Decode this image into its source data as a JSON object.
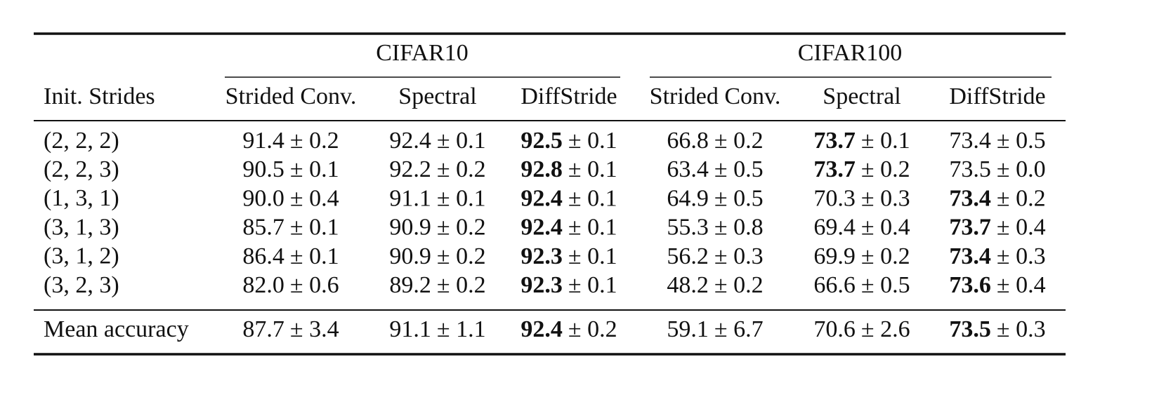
{
  "table": {
    "groups": [
      "CIFAR10",
      "CIFAR100"
    ],
    "columns": [
      "Init. Strides",
      "Strided Conv.",
      "Spectral",
      "DiffStride",
      "Strided Conv.",
      "Spectral",
      "DiffStride"
    ],
    "rows": [
      {
        "label": "(2, 2, 2)",
        "cells": [
          {
            "mean": "91.4",
            "err": "± 0.2",
            "bold": false
          },
          {
            "mean": "92.4",
            "err": "± 0.1",
            "bold": false
          },
          {
            "mean": "92.5",
            "err": "± 0.1",
            "bold": true
          },
          {
            "mean": "66.8",
            "err": "± 0.2",
            "bold": false
          },
          {
            "mean": "73.7",
            "err": "± 0.1",
            "bold": true
          },
          {
            "mean": "73.4",
            "err": "± 0.5",
            "bold": false
          }
        ]
      },
      {
        "label": "(2, 2, 3)",
        "cells": [
          {
            "mean": "90.5",
            "err": "± 0.1",
            "bold": false
          },
          {
            "mean": "92.2",
            "err": "± 0.2",
            "bold": false
          },
          {
            "mean": "92.8",
            "err": "± 0.1",
            "bold": true
          },
          {
            "mean": "63.4",
            "err": "± 0.5",
            "bold": false
          },
          {
            "mean": "73.7",
            "err": "± 0.2",
            "bold": true
          },
          {
            "mean": "73.5",
            "err": "± 0.0",
            "bold": false
          }
        ]
      },
      {
        "label": "(1, 3, 1)",
        "cells": [
          {
            "mean": "90.0",
            "err": "± 0.4",
            "bold": false
          },
          {
            "mean": "91.1",
            "err": "± 0.1",
            "bold": false
          },
          {
            "mean": "92.4",
            "err": "± 0.1",
            "bold": true
          },
          {
            "mean": "64.9",
            "err": "± 0.5",
            "bold": false
          },
          {
            "mean": "70.3",
            "err": "± 0.3",
            "bold": false
          },
          {
            "mean": "73.4",
            "err": "± 0.2",
            "bold": true
          }
        ]
      },
      {
        "label": "(3, 1, 3)",
        "cells": [
          {
            "mean": "85.7",
            "err": "± 0.1",
            "bold": false
          },
          {
            "mean": "90.9",
            "err": "± 0.2",
            "bold": false
          },
          {
            "mean": "92.4",
            "err": "± 0.1",
            "bold": true
          },
          {
            "mean": "55.3",
            "err": "± 0.8",
            "bold": false
          },
          {
            "mean": "69.4",
            "err": "± 0.4",
            "bold": false
          },
          {
            "mean": "73.7",
            "err": "± 0.4",
            "bold": true
          }
        ]
      },
      {
        "label": "(3, 1, 2)",
        "cells": [
          {
            "mean": "86.4",
            "err": "± 0.1",
            "bold": false
          },
          {
            "mean": "90.9",
            "err": "± 0.2",
            "bold": false
          },
          {
            "mean": "92.3",
            "err": "± 0.1",
            "bold": true
          },
          {
            "mean": "56.2",
            "err": "± 0.3",
            "bold": false
          },
          {
            "mean": "69.9",
            "err": "± 0.2",
            "bold": false
          },
          {
            "mean": "73.4",
            "err": "± 0.3",
            "bold": true
          }
        ]
      },
      {
        "label": "(3, 2, 3)",
        "cells": [
          {
            "mean": "82.0",
            "err": "± 0.6",
            "bold": false
          },
          {
            "mean": "89.2",
            "err": "± 0.2",
            "bold": false
          },
          {
            "mean": "92.3",
            "err": "± 0.1",
            "bold": true
          },
          {
            "mean": "48.2",
            "err": "± 0.2",
            "bold": false
          },
          {
            "mean": "66.6",
            "err": "± 0.5",
            "bold": false
          },
          {
            "mean": "73.6",
            "err": "± 0.4",
            "bold": true
          }
        ]
      }
    ],
    "summary": {
      "label": "Mean accuracy",
      "cells": [
        {
          "mean": "87.7",
          "err": "± 3.4",
          "bold": false
        },
        {
          "mean": "91.1",
          "err": "± 1.1",
          "bold": false
        },
        {
          "mean": "92.4",
          "err": "± 0.2",
          "bold": true
        },
        {
          "mean": "59.1",
          "err": "± 6.7",
          "bold": false
        },
        {
          "mean": "70.6",
          "err": "± 2.6",
          "bold": false
        },
        {
          "mean": "73.5",
          "err": "± 0.3",
          "bold": true
        }
      ]
    }
  }
}
